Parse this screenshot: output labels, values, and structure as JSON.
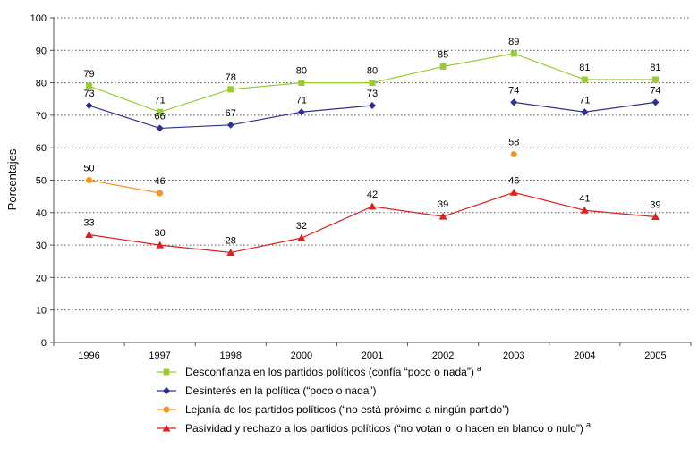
{
  "chart_data": {
    "type": "line",
    "ylabel": "Porcentajes",
    "ylim": [
      0,
      100
    ],
    "yticks": [
      0,
      10,
      20,
      30,
      40,
      50,
      60,
      70,
      80,
      90,
      100
    ],
    "categories": [
      "1996",
      "1997",
      "1998",
      "2000",
      "2001",
      "2002",
      "2003",
      "2004",
      "2005"
    ],
    "grid": "horizontal-dotted",
    "legend_position": "bottom",
    "series": [
      {
        "name": "Desconfianza en los partidos políticos (confía “poco o nada”)",
        "superscript": "a",
        "color": "#99cc33",
        "marker": "square",
        "values": [
          79,
          71,
          78,
          80,
          80,
          85,
          89,
          81,
          81
        ],
        "labels": [
          "79",
          "71",
          "78",
          "80",
          "80",
          "85",
          "89",
          "81",
          "81"
        ]
      },
      {
        "name": "Desinterés en la política (“poco o nada”)",
        "superscript": "",
        "color": "#2e3192",
        "marker": "diamond",
        "values": [
          73,
          66,
          67,
          71,
          73,
          null,
          74,
          71,
          74
        ],
        "labels": [
          "73",
          "66",
          "67",
          "71",
          "73",
          null,
          "74",
          "71",
          "74"
        ]
      },
      {
        "name": "Lejanía de los partidos políticos (“no está próximo a ningún partido”)",
        "superscript": "",
        "color": "#f7941d",
        "marker": "circle",
        "values": [
          50,
          46,
          null,
          null,
          null,
          null,
          58,
          null,
          null
        ],
        "labels": [
          "50",
          "46",
          null,
          null,
          null,
          null,
          "58",
          null,
          null
        ]
      },
      {
        "name": "Pasividad y rechazo a los partidos políticos (“no votan o lo hacen en blanco o nulo”)",
        "superscript": "a",
        "color": "#dd2222",
        "marker": "triangle",
        "values": [
          33.2,
          30,
          27.7,
          32.2,
          41.9,
          38.8,
          46.2,
          40.7,
          38.7
        ],
        "labels": [
          "33",
          "30",
          "28",
          "32",
          "42",
          "39",
          "46",
          "41",
          "39"
        ]
      }
    ]
  }
}
